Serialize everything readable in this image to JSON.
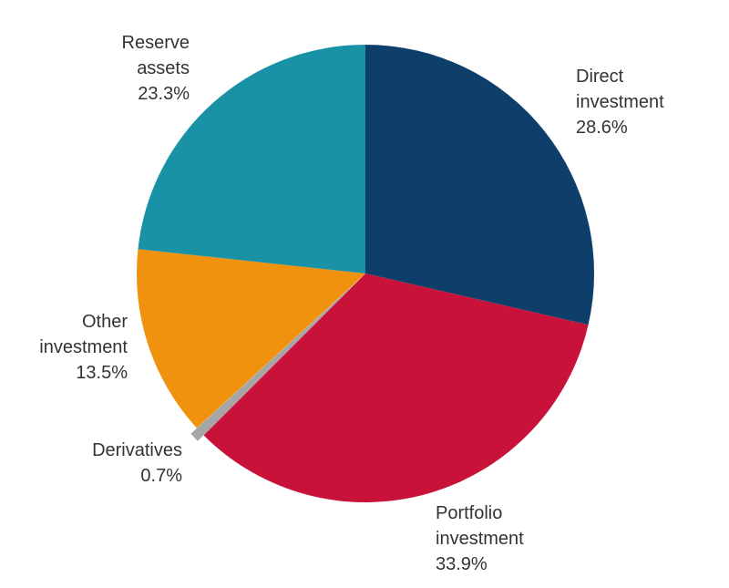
{
  "chart_data": {
    "type": "pie",
    "start": "12 o'clock, clockwise",
    "slices": [
      {
        "label": [
          "Direct",
          "investment"
        ],
        "value": 28.6,
        "value_label": "28.6%",
        "color": "#0e3f6b"
      },
      {
        "label": [
          "Portfolio",
          "investment"
        ],
        "value": 33.9,
        "value_label": "33.9%",
        "color": "#c8123a"
      },
      {
        "label": [
          "Derivatives"
        ],
        "value": 0.7,
        "value_label": "0.7%",
        "color": "#a6a6a6",
        "exploded": true
      },
      {
        "label": [
          "Other",
          "investment"
        ],
        "value": 13.5,
        "value_label": "13.5%",
        "color": "#f0920e"
      },
      {
        "label": [
          "Reserve",
          "assets"
        ],
        "value": 23.3,
        "value_label": "23.3%",
        "color": "#1a92a6"
      }
    ]
  }
}
